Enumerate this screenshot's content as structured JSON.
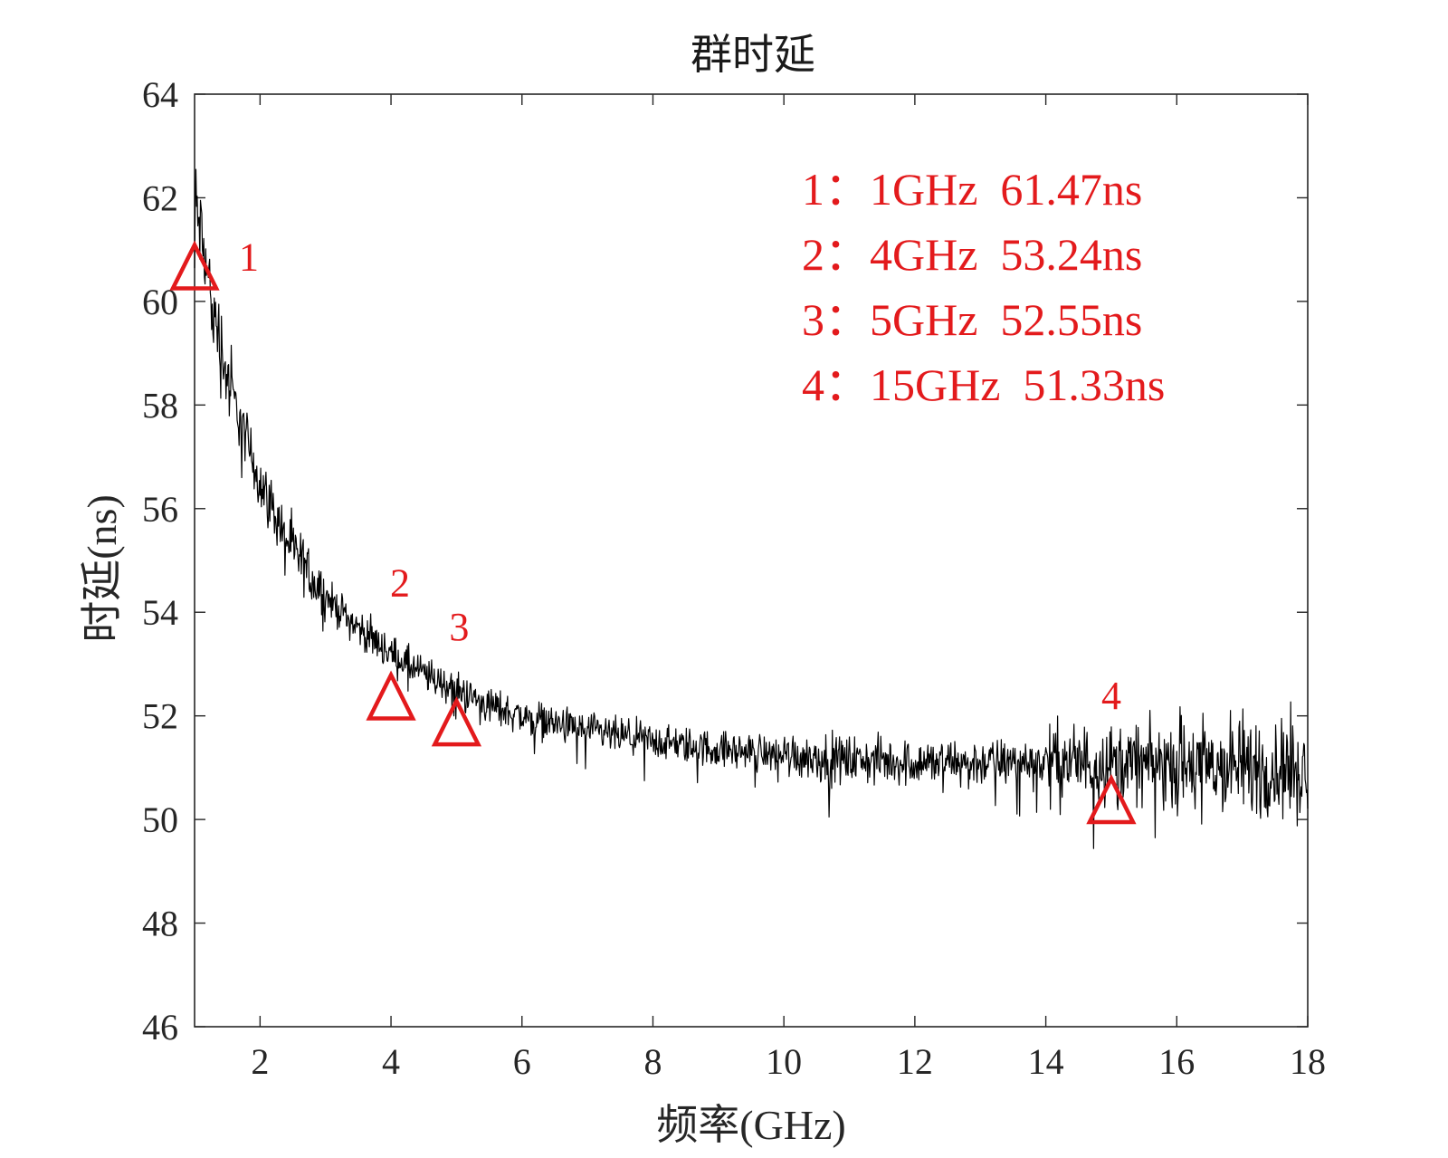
{
  "chart_data": {
    "type": "line",
    "title": "群时延",
    "xlabel": "频率(GHz)",
    "ylabel": "时延(ns)",
    "xlim": [
      1,
      18
    ],
    "ylim": [
      46,
      64
    ],
    "xticks": [
      2,
      4,
      6,
      8,
      10,
      12,
      14,
      16,
      18
    ],
    "yticks": [
      46,
      48,
      50,
      52,
      54,
      56,
      58,
      60,
      62,
      64
    ],
    "grid": false,
    "colors": {
      "line": "#000000",
      "marker": "#e31a1c",
      "axis": "#262626"
    },
    "series": [
      {
        "name": "群时延",
        "trend": {
          "x": [
            1.0,
            1.2,
            1.5,
            2.0,
            2.5,
            3.0,
            3.5,
            4.0,
            4.5,
            5.0,
            5.5,
            6.0,
            7.0,
            8.0,
            9.0,
            10.0,
            11.0,
            12.0,
            13.0,
            14.0,
            15.0,
            16.0,
            17.0,
            18.0
          ],
          "y": [
            62.0,
            60.5,
            58.5,
            56.5,
            55.2,
            54.3,
            53.7,
            53.2,
            52.8,
            52.5,
            52.2,
            52.0,
            51.7,
            51.5,
            51.35,
            51.25,
            51.15,
            51.1,
            51.1,
            51.1,
            51.1,
            51.05,
            51.0,
            51.0
          ]
        }
      }
    ],
    "markers": [
      {
        "label": "1",
        "x": 1,
        "y": 60.6
      },
      {
        "label": "2",
        "x": 4,
        "y": 52.3
      },
      {
        "label": "3",
        "x": 5,
        "y": 51.8
      },
      {
        "label": "4",
        "x": 15,
        "y": 50.3
      }
    ],
    "legend": {
      "placement": "top-right",
      "entries": [
        "1：1GHz  61.47ns",
        "2：4GHz  53.24ns",
        "3：5GHz  52.55ns",
        "4：15GHz  51.33ns"
      ]
    }
  }
}
